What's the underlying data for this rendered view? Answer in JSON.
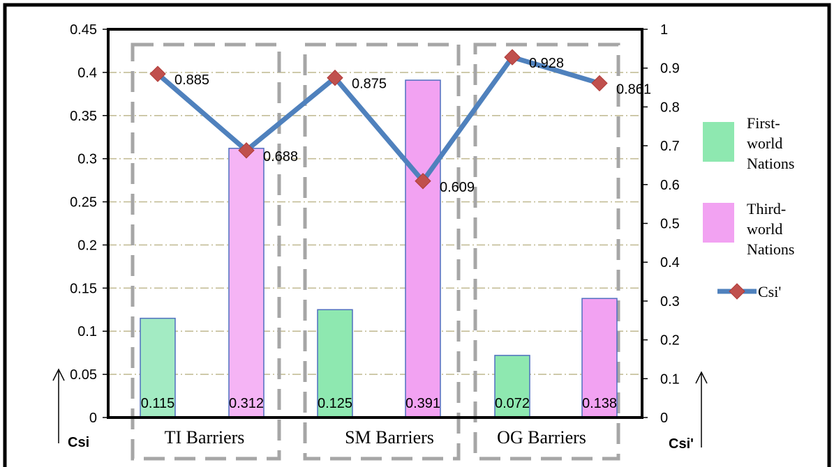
{
  "chart_data": {
    "type": "bar",
    "categories": [
      "TI Barriers",
      "SM Barriers",
      "OG Barriers"
    ],
    "series": [
      {
        "name": "First-world Nations",
        "axis": "left",
        "type": "bar",
        "color": "#8ee8b0",
        "values": [
          0.115,
          0.125,
          0.072
        ]
      },
      {
        "name": "Third-world Nations",
        "axis": "left",
        "type": "bar",
        "color": "#f2a2f2",
        "values": [
          0.312,
          0.391,
          0.138
        ]
      },
      {
        "name": "Csi'",
        "axis": "right",
        "type": "line",
        "color": "#4f81bd",
        "marker_color": "#c0504d",
        "values": [
          [
            0.885,
            0.688
          ],
          [
            0.875,
            0.609
          ],
          [
            0.928,
            0.861
          ]
        ]
      }
    ],
    "left_axis": {
      "label": "Csi",
      "ylim": [
        0,
        0.45
      ],
      "ticks": [
        "0",
        "0.05",
        "0.1",
        "0.15",
        "0.2",
        "0.25",
        "0.3",
        "0.35",
        "0.4",
        "0.45"
      ]
    },
    "right_axis": {
      "label": "Csi'",
      "ylim": [
        0,
        1
      ],
      "ticks": [
        "0",
        "0.1",
        "0.2",
        "0.3",
        "0.4",
        "0.5",
        "0.6",
        "0.7",
        "0.8",
        "0.9",
        "1"
      ]
    },
    "legend": {
      "position": "right",
      "entries": [
        {
          "lines": [
            "First-",
            "world",
            "Nations"
          ],
          "color": "#8ee8b0"
        },
        {
          "lines": [
            "Third-",
            "world",
            "Nations"
          ],
          "color": "#f2a2f2"
        },
        {
          "lines": [
            "Csi'"
          ],
          "color": "#4f81bd"
        }
      ]
    },
    "grid": true,
    "bar_labels": [
      [
        "0.115",
        "0.312"
      ],
      [
        "0.125",
        "0.391"
      ],
      [
        "0.072",
        "0.138"
      ]
    ],
    "line_labels": [
      [
        "0.885",
        "0.688"
      ],
      [
        "0.875",
        "0.609"
      ],
      [
        "0.928",
        "0.861"
      ]
    ]
  }
}
